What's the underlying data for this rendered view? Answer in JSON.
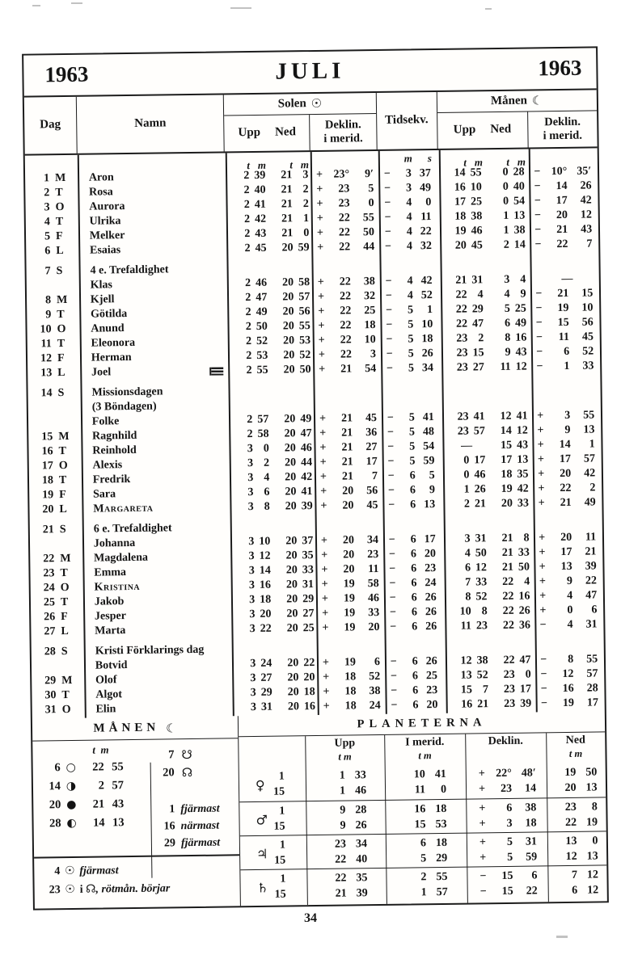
{
  "header": {
    "year_left": "1963",
    "month": "JULI",
    "year_right": "1963"
  },
  "table_header": {
    "dag": "Dag",
    "namn": "Namn",
    "solen": "Solen",
    "sun_symbol": "☉",
    "manen": "Månen",
    "moon_symbol": "☾",
    "upp": "Upp",
    "ned": "Ned",
    "deklin": "Deklin.",
    "i_merid": "i merid.",
    "tidsekv": "Tidsekv.",
    "unit_t": "t",
    "unit_m": "m",
    "unit_s": "s"
  },
  "calendar": {
    "rows": [
      {
        "day": "1",
        "wd": "M",
        "name": "Aron",
        "sun_up": "2 39",
        "sun_ned": "21 3",
        "sun_dekl": "+23° 9′",
        "tidsekv": "− 3 37",
        "moon_up": "14 55",
        "moon_ned": "0 28",
        "moon_dekl": "−10°35′"
      },
      {
        "day": "2",
        "wd": "T",
        "name": "Rosa",
        "sun_up": "2 40",
        "sun_ned": "21 2",
        "sun_dekl": "+23 5",
        "tidsekv": "− 3 49",
        "moon_up": "16 10",
        "moon_ned": "0 40",
        "moon_dekl": "−14 26"
      },
      {
        "day": "3",
        "wd": "O",
        "name": "Aurora",
        "sun_up": "2 41",
        "sun_ned": "21 2",
        "sun_dekl": "+23 0",
        "tidsekv": "− 4 0",
        "moon_up": "17 25",
        "moon_ned": "0 54",
        "moon_dekl": "−17 42"
      },
      {
        "day": "4",
        "wd": "T",
        "name": "Ulrika",
        "sun_up": "2 42",
        "sun_ned": "21 1",
        "sun_dekl": "+22 55",
        "tidsekv": "− 4 11",
        "moon_up": "18 38",
        "moon_ned": "1 13",
        "moon_dekl": "−20 12"
      },
      {
        "day": "5",
        "wd": "F",
        "name": "Melker",
        "sun_up": "2 43",
        "sun_ned": "21 0",
        "sun_dekl": "+22 50",
        "tidsekv": "− 4 22",
        "moon_up": "19 46",
        "moon_ned": "1 38",
        "moon_dekl": "−21 43"
      },
      {
        "day": "6",
        "wd": "L",
        "name": "Esaias",
        "sun_up": "2 45",
        "sun_ned": "20 59",
        "sun_dekl": "+22 44",
        "tidsekv": "− 4 32",
        "moon_up": "20 45",
        "moon_ned": "2 14",
        "moon_dekl": "−22 7"
      },
      {
        "day": "7",
        "wd": "S",
        "feast": [
          "4 e. Trefaldighet"
        ],
        "name": "Klas",
        "sun_up": "2 46",
        "sun_ned": "20 58",
        "sun_dekl": "+22 38",
        "tidsekv": "− 4 42",
        "moon_up": "21 31",
        "moon_ned": "3 4",
        "moon_dekl": "—"
      },
      {
        "day": "8",
        "wd": "M",
        "name": "Kjell",
        "sun_up": "2 47",
        "sun_ned": "20 57",
        "sun_dekl": "+22 32",
        "tidsekv": "− 4 52",
        "moon_up": "22 4",
        "moon_ned": "4 9",
        "moon_dekl": "−21 15"
      },
      {
        "day": "9",
        "wd": "T",
        "name": "Götilda",
        "sun_up": "2 49",
        "sun_ned": "20 56",
        "sun_dekl": "+22 25",
        "tidsekv": "− 5 1",
        "moon_up": "22 29",
        "moon_ned": "5 25",
        "moon_dekl": "−19 10"
      },
      {
        "day": "10",
        "wd": "O",
        "name": "Anund",
        "sun_up": "2 50",
        "sun_ned": "20 55",
        "sun_dekl": "+22 18",
        "tidsekv": "− 5 10",
        "moon_up": "22 47",
        "moon_ned": "6 49",
        "moon_dekl": "−15 56"
      },
      {
        "day": "11",
        "wd": "T",
        "name": "Eleonora",
        "sun_up": "2 52",
        "sun_ned": "20 53",
        "sun_dekl": "+22 10",
        "tidsekv": "− 5 18",
        "moon_up": "23 2",
        "moon_ned": "8 16",
        "moon_dekl": "−11 45"
      },
      {
        "day": "12",
        "wd": "F",
        "name": "Herman",
        "sun_up": "2 53",
        "sun_ned": "20 52",
        "sun_dekl": "+22 3",
        "tidsekv": "− 5 26",
        "moon_up": "23 15",
        "moon_ned": "9 43",
        "moon_dekl": "− 6 52"
      },
      {
        "day": "13",
        "wd": "L",
        "name": "Joel",
        "flag": true,
        "sun_up": "2 55",
        "sun_ned": "20 50",
        "sun_dekl": "+21 54",
        "tidsekv": "− 5 34",
        "moon_up": "23 27",
        "moon_ned": "11 12",
        "moon_dekl": "− 1 33"
      },
      {
        "day": "14",
        "wd": "S",
        "feast": [
          "Missionsdagen",
          "(3 Böndagen)"
        ],
        "name": "Folke",
        "sun_up": "2 57",
        "sun_ned": "20 49",
        "sun_dekl": "+21 45",
        "tidsekv": "− 5 41",
        "moon_up": "23 41",
        "moon_ned": "12 41",
        "moon_dekl": "+ 3 55"
      },
      {
        "day": "15",
        "wd": "M",
        "name": "Ragnhild",
        "sun_up": "2 58",
        "sun_ned": "20 47",
        "sun_dekl": "+21 36",
        "tidsekv": "− 5 48",
        "moon_up": "23 57",
        "moon_ned": "14 12",
        "moon_dekl": "+ 9 13"
      },
      {
        "day": "16",
        "wd": "T",
        "name": "Reinhold",
        "sun_up": "3 0",
        "sun_ned": "20 46",
        "sun_dekl": "+21 27",
        "tidsekv": "− 5 54",
        "moon_up": "—",
        "moon_ned": "15 43",
        "moon_dekl": "+14 1"
      },
      {
        "day": "17",
        "wd": "O",
        "name": "Alexis",
        "sun_up": "3 2",
        "sun_ned": "20 44",
        "sun_dekl": "+21 17",
        "tidsekv": "− 5 59",
        "moon_up": "0 17",
        "moon_ned": "17 13",
        "moon_dekl": "+17 57"
      },
      {
        "day": "18",
        "wd": "T",
        "name": "Fredrik",
        "sun_up": "3 4",
        "sun_ned": "20 42",
        "sun_dekl": "+21 7",
        "tidsekv": "− 6 5",
        "moon_up": "0 46",
        "moon_ned": "18 35",
        "moon_dekl": "+20 42"
      },
      {
        "day": "19",
        "wd": "F",
        "name": "Sara",
        "sun_up": "3 6",
        "sun_ned": "20 41",
        "sun_dekl": "+20 56",
        "tidsekv": "− 6 9",
        "moon_up": "1 26",
        "moon_ned": "19 42",
        "moon_dekl": "+22 2"
      },
      {
        "day": "20",
        "wd": "L",
        "name": "Margareta",
        "smallcaps": true,
        "sun_up": "3 8",
        "sun_ned": "20 39",
        "sun_dekl": "+20 45",
        "tidsekv": "− 6 13",
        "moon_up": "2 21",
        "moon_ned": "20 33",
        "moon_dekl": "+21 49"
      },
      {
        "day": "21",
        "wd": "S",
        "feast": [
          "6 e. Trefaldighet"
        ],
        "name": "Johanna",
        "sun_up": "3 10",
        "sun_ned": "20 37",
        "sun_dekl": "+20 34",
        "tidsekv": "− 6 17",
        "moon_up": "3 31",
        "moon_ned": "21 8",
        "moon_dekl": "+20 11"
      },
      {
        "day": "22",
        "wd": "M",
        "name": "Magdalena",
        "sun_up": "3 12",
        "sun_ned": "20 35",
        "sun_dekl": "+20 23",
        "tidsekv": "− 6 20",
        "moon_up": "4 50",
        "moon_ned": "21 33",
        "moon_dekl": "+17 21"
      },
      {
        "day": "23",
        "wd": "T",
        "name": "Emma",
        "sun_up": "3 14",
        "sun_ned": "20 33",
        "sun_dekl": "+20 11",
        "tidsekv": "− 6 23",
        "moon_up": "6 12",
        "moon_ned": "21 50",
        "moon_dekl": "+13 39"
      },
      {
        "day": "24",
        "wd": "O",
        "name": "Kristina",
        "smallcaps": true,
        "sun_up": "3 16",
        "sun_ned": "20 31",
        "sun_dekl": "+19 58",
        "tidsekv": "− 6 24",
        "moon_up": "7 33",
        "moon_ned": "22 4",
        "moon_dekl": "+ 9 22"
      },
      {
        "day": "25",
        "wd": "T",
        "name": "Jakob",
        "sun_up": "3 18",
        "sun_ned": "20 29",
        "sun_dekl": "+19 46",
        "tidsekv": "− 6 26",
        "moon_up": "8 52",
        "moon_ned": "22 16",
        "moon_dekl": "+ 4 47"
      },
      {
        "day": "26",
        "wd": "F",
        "name": "Jesper",
        "sun_up": "3 20",
        "sun_ned": "20 27",
        "sun_dekl": "+19 33",
        "tidsekv": "− 6 26",
        "moon_up": "10 8",
        "moon_ned": "22 26",
        "moon_dekl": "+ 0 6"
      },
      {
        "day": "27",
        "wd": "L",
        "name": "Marta",
        "sun_up": "3 22",
        "sun_ned": "20 25",
        "sun_dekl": "+19 20",
        "tidsekv": "− 6 26",
        "moon_up": "11 23",
        "moon_ned": "22 36",
        "moon_dekl": "− 4 31"
      },
      {
        "day": "28",
        "wd": "S",
        "feast": [
          "Kristi Förklarings dag"
        ],
        "name": "Botvid",
        "sun_up": "3 24",
        "sun_ned": "20 22",
        "sun_dekl": "+19 6",
        "tidsekv": "− 6 26",
        "moon_up": "12 38",
        "moon_ned": "22 47",
        "moon_dekl": "− 8 55"
      },
      {
        "day": "29",
        "wd": "M",
        "name": "Olof",
        "sun_up": "3 27",
        "sun_ned": "20 20",
        "sun_dekl": "+18 52",
        "tidsekv": "− 6 25",
        "moon_up": "13 52",
        "moon_ned": "23 0",
        "moon_dekl": "−12 57"
      },
      {
        "day": "30",
        "wd": "T",
        "name": "Algot",
        "sun_up": "3 29",
        "sun_ned": "20 18",
        "sun_dekl": "+18 38",
        "tidsekv": "− 6 23",
        "moon_up": "15 7",
        "moon_ned": "23 17",
        "moon_dekl": "−16 28"
      },
      {
        "day": "31",
        "wd": "O",
        "name": "Elin",
        "sun_up": "3 31",
        "sun_ned": "20 16",
        "sun_dekl": "+18 24",
        "tidsekv": "− 6 20",
        "moon_up": "16 21",
        "moon_ned": "23 39",
        "moon_dekl": "−19 17"
      }
    ]
  },
  "moon_section": {
    "title": "MÅNEN",
    "symbol": "☾",
    "unit_t": "t",
    "unit_m": "m",
    "phases": [
      {
        "day": "6",
        "icon": "full-moon",
        "glyph": "○",
        "time": "22 55"
      },
      {
        "day": "14",
        "icon": "last-quarter-moon",
        "glyph": "◑",
        "time": "2 57"
      },
      {
        "day": "20",
        "icon": "new-moon",
        "glyph": "●",
        "time": "21 43"
      },
      {
        "day": "28",
        "icon": "first-quarter-moon",
        "glyph": "◐",
        "time": "14 13"
      }
    ],
    "nodes": [
      {
        "day": "7",
        "icon": "descending-node",
        "glyph": "☋"
      },
      {
        "day": "20",
        "icon": "ascending-node",
        "glyph": "☊"
      }
    ],
    "distances": [
      {
        "day": "1",
        "text": "fjärmast"
      },
      {
        "day": "16",
        "text": "närmast"
      },
      {
        "day": "29",
        "text": "fjärmast"
      }
    ],
    "sun_events": [
      {
        "day": "4",
        "glyph": "☉",
        "text": "fjärmast"
      },
      {
        "day": "23",
        "glyph": "☉",
        "text_before": "i",
        "zodiac": "☊",
        "text_after": ", rötmån. börjar"
      }
    ]
  },
  "planets_section": {
    "title": "PLANETERNA",
    "col_headers": {
      "upp": "Upp",
      "i_merid": "I merid.",
      "deklin": "Deklin.",
      "ned": "Ned",
      "unit_tm": "t m"
    },
    "rows": [
      {
        "planet": "venus",
        "glyph": "♀",
        "dates": [
          "1",
          "15"
        ],
        "upp": [
          "1 33",
          "1 46"
        ],
        "i_merid": [
          "10 41",
          "11 0"
        ],
        "deklin": [
          "+22°48′",
          "+23 14"
        ],
        "ned": [
          "19 50",
          "20 13"
        ]
      },
      {
        "planet": "mars",
        "glyph": "♂",
        "dates": [
          "1",
          "15"
        ],
        "upp": [
          "9 28",
          "9 26"
        ],
        "i_merid": [
          "16 18",
          "15 53"
        ],
        "deklin": [
          "+ 6 38",
          "+ 3 18"
        ],
        "ned": [
          "23 8",
          "22 19"
        ]
      },
      {
        "planet": "jupiter",
        "glyph": "♃",
        "dates": [
          "1",
          "15"
        ],
        "upp": [
          "23 34",
          "22 40"
        ],
        "i_merid": [
          "6 18",
          "5 29"
        ],
        "deklin": [
          "+ 5 31",
          "+ 5 59"
        ],
        "ned": [
          "13 0",
          "12 13"
        ]
      },
      {
        "planet": "saturn",
        "glyph": "♄",
        "dates": [
          "1",
          "15"
        ],
        "upp": [
          "22 35",
          "21 39"
        ],
        "i_merid": [
          "2 55",
          "1 57"
        ],
        "deklin": [
          "−15 6",
          "−15 22"
        ],
        "ned": [
          "7 12",
          "6 12"
        ]
      }
    ]
  },
  "page": {
    "number": "34"
  }
}
